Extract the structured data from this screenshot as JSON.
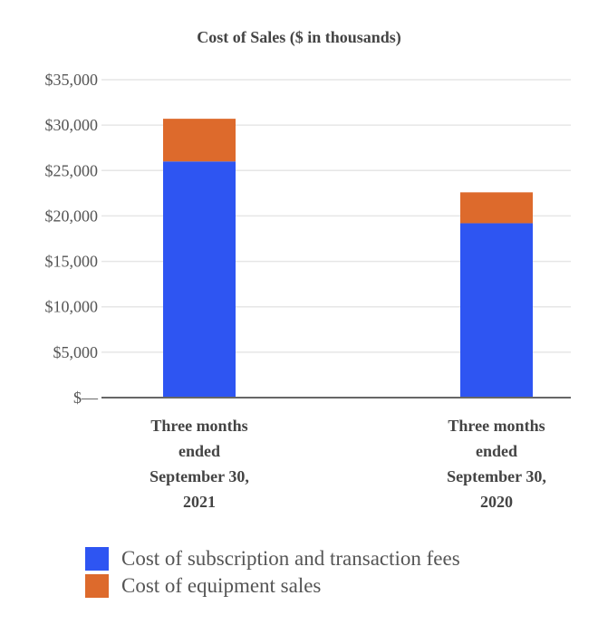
{
  "chart_data": {
    "type": "bar",
    "stacked": true,
    "title": "Cost of Sales ($ in thousands)",
    "categories": [
      [
        "Three months",
        "ended",
        "September 30,",
        "2021"
      ],
      [
        "Three months",
        "ended",
        "September 30,",
        "2020"
      ]
    ],
    "series": [
      {
        "name": "Cost of subscription and transaction fees",
        "values": [
          26000,
          19200
        ],
        "color": "#2e55f2"
      },
      {
        "name": "Cost of equipment sales",
        "values": [
          4700,
          3400
        ],
        "color": "#dd6a2c"
      }
    ],
    "ylim": [
      0,
      35000
    ],
    "yticks": [
      0,
      5000,
      10000,
      15000,
      20000,
      25000,
      30000,
      35000
    ],
    "ytick_labels": [
      "$—",
      "$5,000",
      "$10,000",
      "$15,000",
      "$20,000",
      "$25,000",
      "$30,000",
      "$35,000"
    ],
    "grid": true,
    "legend_position": "bottom-left"
  }
}
